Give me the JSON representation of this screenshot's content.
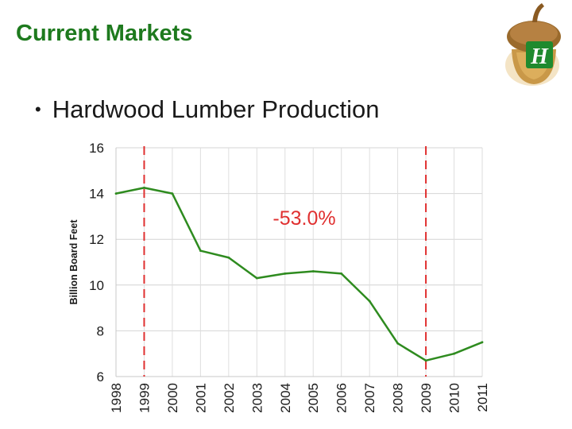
{
  "slide": {
    "title": "Current Markets",
    "bullet": "Hardwood Lumber Production"
  },
  "logo": {
    "icon": "acorn-icon",
    "letter": "H",
    "colors": {
      "shell": "#c99848",
      "badge": "#1f8a2e"
    }
  },
  "chart_data": {
    "type": "line",
    "title": "",
    "xlabel": "",
    "ylabel": "Billion Board Feet",
    "categories": [
      "1998",
      "1999",
      "2000",
      "2001",
      "2002",
      "2003",
      "2004",
      "2005",
      "2006",
      "2007",
      "2008",
      "2009",
      "2010",
      "2011"
    ],
    "series": [
      {
        "values": [
          14.0,
          14.25,
          14.0,
          11.5,
          11.2,
          10.3,
          10.5,
          10.6,
          10.5,
          9.3,
          7.45,
          6.7,
          7.0,
          7.5
        ],
        "color": "#2e8b1f"
      }
    ],
    "ylim": [
      6,
      16
    ],
    "yticks": [
      6,
      8,
      10,
      12,
      14,
      16
    ],
    "grid": true,
    "reference_lines": [
      {
        "x": "1999",
        "color": "#e03030",
        "style": "dashed"
      },
      {
        "x": "2009",
        "color": "#e03030",
        "style": "dashed"
      }
    ],
    "annotations": [
      {
        "text": "-53.0%",
        "color": "#e03030"
      }
    ]
  }
}
